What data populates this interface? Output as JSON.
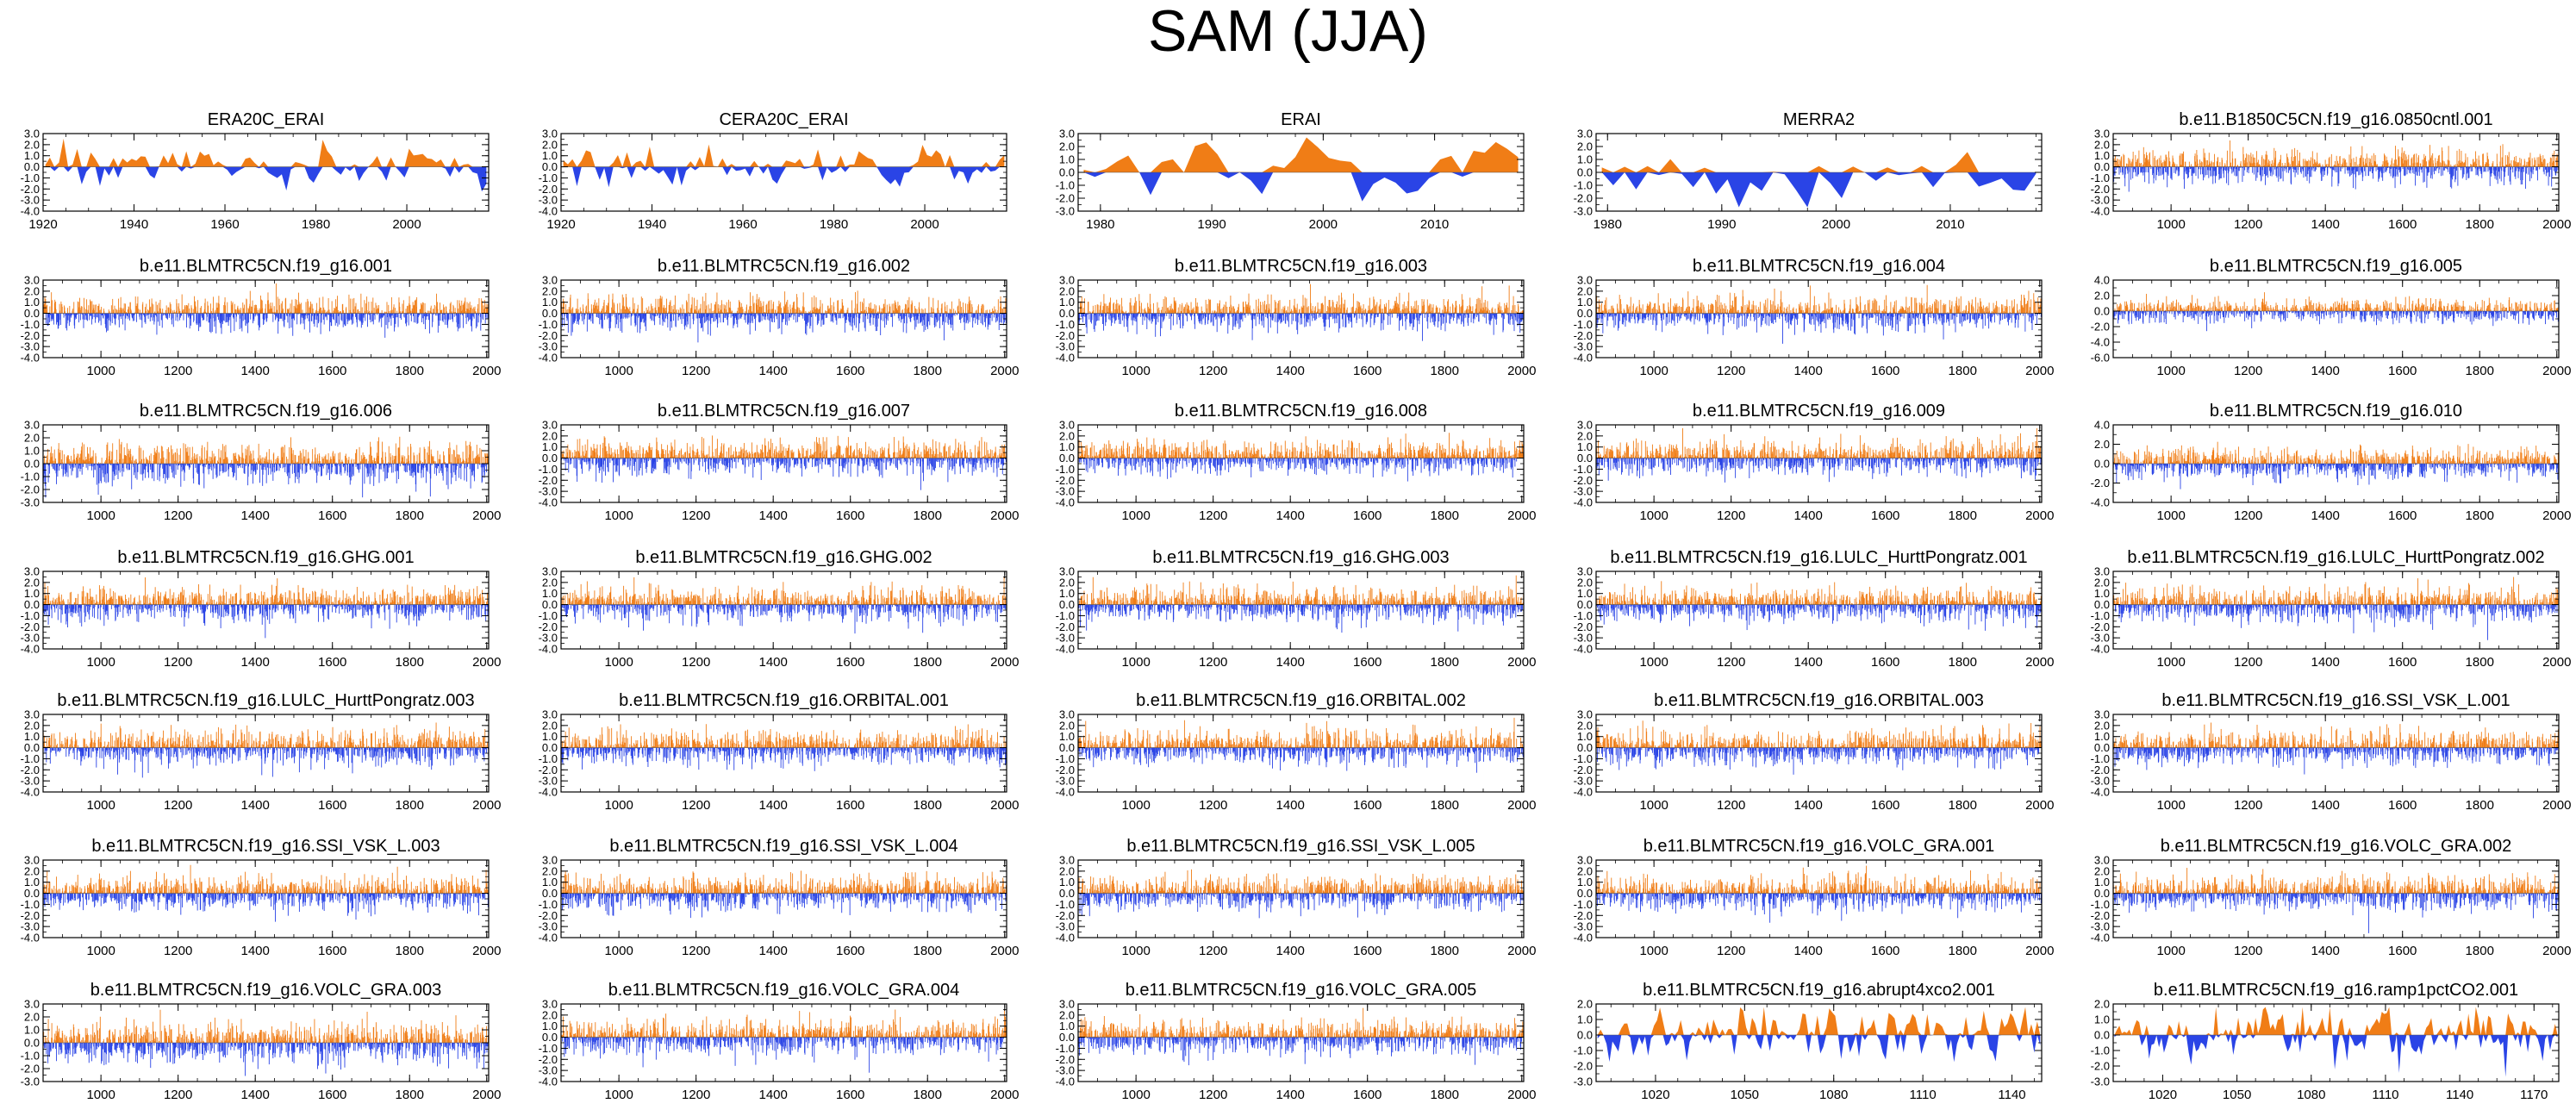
{
  "title": "SAM (JJA)",
  "colors": {
    "positive": "#f07d16",
    "negative": "#2a44e6",
    "axis": "#000000"
  },
  "chart_data": [
    {
      "type": "area",
      "series_kind": "smooth",
      "seed": 11,
      "title": "ERA20C_ERAI",
      "x_range": [
        1920,
        2018
      ],
      "xticks": [
        1920,
        1940,
        1960,
        1980,
        2000
      ],
      "yticks": [
        "3.0",
        "2.0",
        "1.0",
        "0.0",
        "-1.0",
        "-2.0",
        "-3.0",
        "-4.0"
      ],
      "ylim": [
        -4,
        3
      ]
    },
    {
      "type": "area",
      "series_kind": "smooth",
      "seed": 12,
      "title": "CERA20C_ERAI",
      "x_range": [
        1920,
        2018
      ],
      "xticks": [
        1920,
        1940,
        1960,
        1980,
        2000
      ],
      "yticks": [
        "3.0",
        "2.0",
        "1.0",
        "0.0",
        "-1.0",
        "-2.0",
        "-3.0",
        "-4.0"
      ],
      "ylim": [
        -4,
        3
      ]
    },
    {
      "type": "area",
      "series_kind": "smooth",
      "seed": 13,
      "title": "ERAI",
      "x_range": [
        1978,
        2018
      ],
      "xticks": [
        1980,
        1990,
        2000,
        2010
      ],
      "yticks": [
        "3.0",
        "2.0",
        "1.0",
        "0.0",
        "-1.0",
        "-2.0",
        "-3.0"
      ],
      "ylim": [
        -3,
        3
      ]
    },
    {
      "type": "area",
      "series_kind": "smooth",
      "seed": 14,
      "title": "MERRA2",
      "x_range": [
        1979,
        2018
      ],
      "xticks": [
        1980,
        1990,
        2000,
        2010
      ],
      "yticks": [
        "3.0",
        "2.0",
        "1.0",
        "0.0",
        "-1.0",
        "-2.0",
        "-3.0"
      ],
      "ylim": [
        -3,
        3
      ]
    },
    {
      "type": "area",
      "series_kind": "dense",
      "seed": 15,
      "title": "b.e11.B1850C5CN.f19_g16.0850cntl.001",
      "x_range": [
        850,
        2005
      ],
      "xticks": [
        1000,
        1200,
        1400,
        1600,
        1800,
        2000
      ],
      "yticks": [
        "3.0",
        "2.0",
        "1.0",
        "0.0",
        "-1.0",
        "-2.0",
        "-3.0",
        "-4.0"
      ],
      "ylim": [
        -4,
        3
      ]
    },
    {
      "type": "area",
      "series_kind": "dense",
      "seed": 21,
      "title": "b.e11.BLMTRC5CN.f19_g16.001",
      "x_range": [
        850,
        2005
      ],
      "xticks": [
        1000,
        1200,
        1400,
        1600,
        1800,
        2000
      ],
      "yticks": [
        "3.0",
        "2.0",
        "1.0",
        "0.0",
        "-1.0",
        "-2.0",
        "-3.0",
        "-4.0"
      ],
      "ylim": [
        -4,
        3
      ]
    },
    {
      "type": "area",
      "series_kind": "dense",
      "seed": 22,
      "title": "b.e11.BLMTRC5CN.f19_g16.002",
      "x_range": [
        850,
        2005
      ],
      "xticks": [
        1000,
        1200,
        1400,
        1600,
        1800,
        2000
      ],
      "yticks": [
        "3.0",
        "2.0",
        "1.0",
        "0.0",
        "-1.0",
        "-2.0",
        "-3.0",
        "-4.0"
      ],
      "ylim": [
        -4,
        3
      ]
    },
    {
      "type": "area",
      "series_kind": "dense",
      "seed": 23,
      "title": "b.e11.BLMTRC5CN.f19_g16.003",
      "x_range": [
        850,
        2005
      ],
      "xticks": [
        1000,
        1200,
        1400,
        1600,
        1800,
        2000
      ],
      "yticks": [
        "3.0",
        "2.0",
        "1.0",
        "0.0",
        "-1.0",
        "-2.0",
        "-3.0",
        "-4.0"
      ],
      "ylim": [
        -4,
        3
      ]
    },
    {
      "type": "area",
      "series_kind": "dense",
      "seed": 24,
      "title": "b.e11.BLMTRC5CN.f19_g16.004",
      "x_range": [
        850,
        2005
      ],
      "xticks": [
        1000,
        1200,
        1400,
        1600,
        1800,
        2000
      ],
      "yticks": [
        "3.0",
        "2.0",
        "1.0",
        "0.0",
        "-1.0",
        "-2.0",
        "-3.0",
        "-4.0"
      ],
      "ylim": [
        -4,
        3
      ]
    },
    {
      "type": "area",
      "series_kind": "dense",
      "seed": 25,
      "title": "b.e11.BLMTRC5CN.f19_g16.005",
      "x_range": [
        850,
        2005
      ],
      "xticks": [
        1000,
        1200,
        1400,
        1600,
        1800,
        2000
      ],
      "yticks": [
        "4.0",
        "2.0",
        "0.0",
        "-2.0",
        "-4.0",
        "-6.0"
      ],
      "ylim": [
        -6,
        4
      ]
    },
    {
      "type": "area",
      "series_kind": "dense",
      "seed": 31,
      "title": "b.e11.BLMTRC5CN.f19_g16.006",
      "x_range": [
        850,
        2005
      ],
      "xticks": [
        1000,
        1200,
        1400,
        1600,
        1800,
        2000
      ],
      "yticks": [
        "3.0",
        "2.0",
        "1.0",
        "0.0",
        "-1.0",
        "-2.0",
        "-3.0"
      ],
      "ylim": [
        -3,
        3
      ]
    },
    {
      "type": "area",
      "series_kind": "dense",
      "seed": 32,
      "title": "b.e11.BLMTRC5CN.f19_g16.007",
      "x_range": [
        850,
        2005
      ],
      "xticks": [
        1000,
        1200,
        1400,
        1600,
        1800,
        2000
      ],
      "yticks": [
        "3.0",
        "2.0",
        "1.0",
        "0.0",
        "-1.0",
        "-2.0",
        "-3.0",
        "-4.0"
      ],
      "ylim": [
        -4,
        3
      ]
    },
    {
      "type": "area",
      "series_kind": "dense",
      "seed": 33,
      "title": "b.e11.BLMTRC5CN.f19_g16.008",
      "x_range": [
        850,
        2005
      ],
      "xticks": [
        1000,
        1200,
        1400,
        1600,
        1800,
        2000
      ],
      "yticks": [
        "3.0",
        "2.0",
        "1.0",
        "0.0",
        "-1.0",
        "-2.0",
        "-3.0",
        "-4.0"
      ],
      "ylim": [
        -4,
        3
      ]
    },
    {
      "type": "area",
      "series_kind": "dense",
      "seed": 34,
      "title": "b.e11.BLMTRC5CN.f19_g16.009",
      "x_range": [
        850,
        2005
      ],
      "xticks": [
        1000,
        1200,
        1400,
        1600,
        1800,
        2000
      ],
      "yticks": [
        "3.0",
        "2.0",
        "1.0",
        "0.0",
        "-1.0",
        "-2.0",
        "-3.0",
        "-4.0"
      ],
      "ylim": [
        -4,
        3
      ]
    },
    {
      "type": "area",
      "series_kind": "dense",
      "seed": 35,
      "title": "b.e11.BLMTRC5CN.f19_g16.010",
      "x_range": [
        850,
        2005
      ],
      "xticks": [
        1000,
        1200,
        1400,
        1600,
        1800,
        2000
      ],
      "yticks": [
        "4.0",
        "2.0",
        "0.0",
        "-2.0",
        "-4.0"
      ],
      "ylim": [
        -4,
        4
      ]
    },
    {
      "type": "area",
      "series_kind": "dense",
      "seed": 41,
      "title": "b.e11.BLMTRC5CN.f19_g16.GHG.001",
      "x_range": [
        850,
        2005
      ],
      "xticks": [
        1000,
        1200,
        1400,
        1600,
        1800,
        2000
      ],
      "yticks": [
        "3.0",
        "2.0",
        "1.0",
        "0.0",
        "-1.0",
        "-2.0",
        "-3.0",
        "-4.0"
      ],
      "ylim": [
        -4,
        3
      ]
    },
    {
      "type": "area",
      "series_kind": "dense",
      "seed": 42,
      "title": "b.e11.BLMTRC5CN.f19_g16.GHG.002",
      "x_range": [
        850,
        2005
      ],
      "xticks": [
        1000,
        1200,
        1400,
        1600,
        1800,
        2000
      ],
      "yticks": [
        "3.0",
        "2.0",
        "1.0",
        "0.0",
        "-1.0",
        "-2.0",
        "-3.0",
        "-4.0"
      ],
      "ylim": [
        -4,
        3
      ]
    },
    {
      "type": "area",
      "series_kind": "dense",
      "seed": 43,
      "title": "b.e11.BLMTRC5CN.f19_g16.GHG.003",
      "x_range": [
        850,
        2005
      ],
      "xticks": [
        1000,
        1200,
        1400,
        1600,
        1800,
        2000
      ],
      "yticks": [
        "3.0",
        "2.0",
        "1.0",
        "0.0",
        "-1.0",
        "-2.0",
        "-3.0",
        "-4.0"
      ],
      "ylim": [
        -4,
        3
      ]
    },
    {
      "type": "area",
      "series_kind": "dense",
      "seed": 44,
      "title": "b.e11.BLMTRC5CN.f19_g16.LULC_HurttPongratz.001",
      "x_range": [
        850,
        2005
      ],
      "xticks": [
        1000,
        1200,
        1400,
        1600,
        1800,
        2000
      ],
      "yticks": [
        "3.0",
        "2.0",
        "1.0",
        "0.0",
        "-1.0",
        "-2.0",
        "-3.0",
        "-4.0"
      ],
      "ylim": [
        -4,
        3
      ]
    },
    {
      "type": "area",
      "series_kind": "dense",
      "seed": 45,
      "title": "b.e11.BLMTRC5CN.f19_g16.LULC_HurttPongratz.002",
      "x_range": [
        850,
        2005
      ],
      "xticks": [
        1000,
        1200,
        1400,
        1600,
        1800,
        2000
      ],
      "yticks": [
        "3.0",
        "2.0",
        "1.0",
        "0.0",
        "-1.0",
        "-2.0",
        "-3.0",
        "-4.0"
      ],
      "ylim": [
        -4,
        3
      ]
    },
    {
      "type": "area",
      "series_kind": "dense",
      "seed": 51,
      "title": "b.e11.BLMTRC5CN.f19_g16.LULC_HurttPongratz.003",
      "x_range": [
        850,
        2005
      ],
      "xticks": [
        1000,
        1200,
        1400,
        1600,
        1800,
        2000
      ],
      "yticks": [
        "3.0",
        "2.0",
        "1.0",
        "0.0",
        "-1.0",
        "-2.0",
        "-3.0",
        "-4.0"
      ],
      "ylim": [
        -4,
        3
      ]
    },
    {
      "type": "area",
      "series_kind": "dense",
      "seed": 52,
      "title": "b.e11.BLMTRC5CN.f19_g16.ORBITAL.001",
      "x_range": [
        850,
        2005
      ],
      "xticks": [
        1000,
        1200,
        1400,
        1600,
        1800,
        2000
      ],
      "yticks": [
        "3.0",
        "2.0",
        "1.0",
        "0.0",
        "-1.0",
        "-2.0",
        "-3.0",
        "-4.0"
      ],
      "ylim": [
        -4,
        3
      ]
    },
    {
      "type": "area",
      "series_kind": "dense",
      "seed": 53,
      "title": "b.e11.BLMTRC5CN.f19_g16.ORBITAL.002",
      "x_range": [
        850,
        2005
      ],
      "xticks": [
        1000,
        1200,
        1400,
        1600,
        1800,
        2000
      ],
      "yticks": [
        "3.0",
        "2.0",
        "1.0",
        "0.0",
        "-1.0",
        "-2.0",
        "-3.0",
        "-4.0"
      ],
      "ylim": [
        -4,
        3
      ]
    },
    {
      "type": "area",
      "series_kind": "dense",
      "seed": 54,
      "title": "b.e11.BLMTRC5CN.f19_g16.ORBITAL.003",
      "x_range": [
        850,
        2005
      ],
      "xticks": [
        1000,
        1200,
        1400,
        1600,
        1800,
        2000
      ],
      "yticks": [
        "3.0",
        "2.0",
        "1.0",
        "0.0",
        "-1.0",
        "-2.0",
        "-3.0",
        "-4.0"
      ],
      "ylim": [
        -4,
        3
      ]
    },
    {
      "type": "area",
      "series_kind": "dense",
      "seed": 55,
      "title": "b.e11.BLMTRC5CN.f19_g16.SSI_VSK_L.001",
      "x_range": [
        850,
        2005
      ],
      "xticks": [
        1000,
        1200,
        1400,
        1600,
        1800,
        2000
      ],
      "yticks": [
        "3.0",
        "2.0",
        "1.0",
        "0.0",
        "-1.0",
        "-2.0",
        "-3.0",
        "-4.0"
      ],
      "ylim": [
        -4,
        3
      ]
    },
    {
      "type": "area",
      "series_kind": "dense",
      "seed": 61,
      "title": "b.e11.BLMTRC5CN.f19_g16.SSI_VSK_L.003",
      "x_range": [
        850,
        2005
      ],
      "xticks": [
        1000,
        1200,
        1400,
        1600,
        1800,
        2000
      ],
      "yticks": [
        "3.0",
        "2.0",
        "1.0",
        "0.0",
        "-1.0",
        "-2.0",
        "-3.0",
        "-4.0"
      ],
      "ylim": [
        -4,
        3
      ]
    },
    {
      "type": "area",
      "series_kind": "dense",
      "seed": 62,
      "title": "b.e11.BLMTRC5CN.f19_g16.SSI_VSK_L.004",
      "x_range": [
        850,
        2005
      ],
      "xticks": [
        1000,
        1200,
        1400,
        1600,
        1800,
        2000
      ],
      "yticks": [
        "3.0",
        "2.0",
        "1.0",
        "0.0",
        "-1.0",
        "-2.0",
        "-3.0",
        "-4.0"
      ],
      "ylim": [
        -4,
        3
      ]
    },
    {
      "type": "area",
      "series_kind": "dense",
      "seed": 63,
      "title": "b.e11.BLMTRC5CN.f19_g16.SSI_VSK_L.005",
      "x_range": [
        850,
        2005
      ],
      "xticks": [
        1000,
        1200,
        1400,
        1600,
        1800,
        2000
      ],
      "yticks": [
        "3.0",
        "2.0",
        "1.0",
        "0.0",
        "-1.0",
        "-2.0",
        "-3.0",
        "-4.0"
      ],
      "ylim": [
        -4,
        3
      ]
    },
    {
      "type": "area",
      "series_kind": "dense",
      "seed": 64,
      "title": "b.e11.BLMTRC5CN.f19_g16.VOLC_GRA.001",
      "x_range": [
        850,
        2005
      ],
      "xticks": [
        1000,
        1200,
        1400,
        1600,
        1800,
        2000
      ],
      "yticks": [
        "3.0",
        "2.0",
        "1.0",
        "0.0",
        "-1.0",
        "-2.0",
        "-3.0",
        "-4.0"
      ],
      "ylim": [
        -4,
        3
      ]
    },
    {
      "type": "area",
      "series_kind": "dense",
      "seed": 65,
      "title": "b.e11.BLMTRC5CN.f19_g16.VOLC_GRA.002",
      "x_range": [
        850,
        2005
      ],
      "xticks": [
        1000,
        1200,
        1400,
        1600,
        1800,
        2000
      ],
      "yticks": [
        "3.0",
        "2.0",
        "1.0",
        "0.0",
        "-1.0",
        "-2.0",
        "-3.0",
        "-4.0"
      ],
      "ylim": [
        -4,
        3
      ]
    },
    {
      "type": "area",
      "series_kind": "dense",
      "seed": 71,
      "title": "b.e11.BLMTRC5CN.f19_g16.VOLC_GRA.003",
      "x_range": [
        850,
        2005
      ],
      "xticks": [
        1000,
        1200,
        1400,
        1600,
        1800,
        2000
      ],
      "yticks": [
        "3.0",
        "2.0",
        "1.0",
        "0.0",
        "-1.0",
        "-2.0",
        "-3.0"
      ],
      "ylim": [
        -3,
        3
      ]
    },
    {
      "type": "area",
      "series_kind": "dense",
      "seed": 72,
      "title": "b.e11.BLMTRC5CN.f19_g16.VOLC_GRA.004",
      "x_range": [
        850,
        2005
      ],
      "xticks": [
        1000,
        1200,
        1400,
        1600,
        1800,
        2000
      ],
      "yticks": [
        "3.0",
        "2.0",
        "1.0",
        "0.0",
        "-1.0",
        "-2.0",
        "-3.0",
        "-4.0"
      ],
      "ylim": [
        -4,
        3
      ]
    },
    {
      "type": "area",
      "series_kind": "dense",
      "seed": 73,
      "title": "b.e11.BLMTRC5CN.f19_g16.VOLC_GRA.005",
      "x_range": [
        850,
        2005
      ],
      "xticks": [
        1000,
        1200,
        1400,
        1600,
        1800,
        2000
      ],
      "yticks": [
        "3.0",
        "2.0",
        "1.0",
        "0.0",
        "-1.0",
        "-2.0",
        "-3.0",
        "-4.0"
      ],
      "ylim": [
        -4,
        3
      ]
    },
    {
      "type": "area",
      "series_kind": "medium",
      "seed": 74,
      "title": "b.e11.BLMTRC5CN.f19_g16.abrupt4xco2.001",
      "x_range": [
        1000,
        1150
      ],
      "xticks": [
        1020,
        1050,
        1080,
        1110,
        1140
      ],
      "yticks": [
        "2.0",
        "1.0",
        "0.0",
        "-1.0",
        "-2.0",
        "-3.0"
      ],
      "ylim": [
        -3,
        2
      ]
    },
    {
      "type": "area",
      "series_kind": "medium",
      "seed": 75,
      "title": "b.e11.BLMTRC5CN.f19_g16.ramp1pctCO2.001",
      "x_range": [
        1000,
        1180
      ],
      "xticks": [
        1020,
        1050,
        1080,
        1110,
        1140,
        1170
      ],
      "yticks": [
        "2.0",
        "1.0",
        "0.0",
        "-1.0",
        "-2.0",
        "-3.0"
      ],
      "ylim": [
        -3,
        2
      ]
    }
  ]
}
